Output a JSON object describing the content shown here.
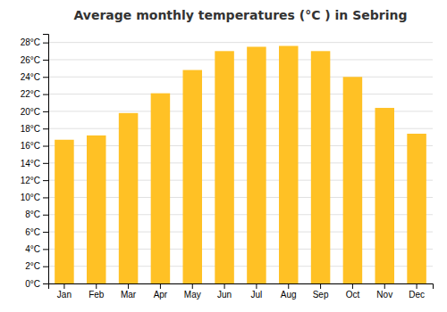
{
  "chart_data": {
    "type": "bar",
    "title": "Average monthly temperatures (°C ) in Sebring",
    "categories": [
      "Jan",
      "Feb",
      "Mar",
      "Apr",
      "May",
      "Jun",
      "Jul",
      "Aug",
      "Sep",
      "Oct",
      "Nov",
      "Dec"
    ],
    "values": [
      16.7,
      17.2,
      19.8,
      22.1,
      24.8,
      27.0,
      27.5,
      27.6,
      27.0,
      24.0,
      20.4,
      17.4
    ],
    "color": "#FFC125",
    "ylim": [
      0,
      29
    ],
    "yticks": [
      {
        "value": 0,
        "label": "0°C"
      },
      {
        "value": 2,
        "label": "2°C"
      },
      {
        "value": 4,
        "label": "4°C"
      },
      {
        "value": 6,
        "label": "6°C"
      },
      {
        "value": 8,
        "label": "8°C"
      },
      {
        "value": 10,
        "label": "10°C"
      },
      {
        "value": 12,
        "label": "12°C"
      },
      {
        "value": 14,
        "label": "14°C"
      },
      {
        "value": 16,
        "label": "16°C"
      },
      {
        "value": 18,
        "label": "18°C"
      },
      {
        "value": 20,
        "label": "20°C"
      },
      {
        "value": 22,
        "label": "22°C"
      },
      {
        "value": 24,
        "label": "24°C"
      },
      {
        "value": 26,
        "label": "26°C"
      },
      {
        "value": 28,
        "label": "28°C"
      }
    ],
    "grid": true
  }
}
